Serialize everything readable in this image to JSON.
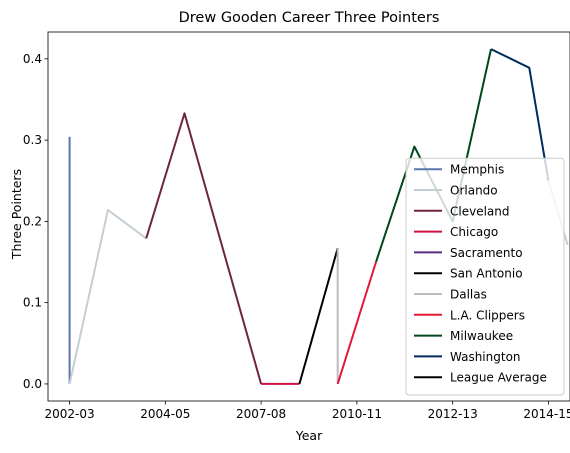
{
  "chart_data": {
    "type": "line",
    "title": "Drew Gooden Career Three Pointers",
    "xlabel": "Year",
    "ylabel": "Three Pointers",
    "x_tick_labels": [
      "2002-03",
      "2004-05",
      "2007-08",
      "2010-11",
      "2012-13",
      "2014-15"
    ],
    "x_tick_positions": [
      0,
      2,
      4,
      6,
      8,
      10
    ],
    "xlim": [
      -0.45,
      10.45
    ],
    "ylim": [
      -0.021,
      0.433
    ],
    "yticks": [
      0.0,
      0.1,
      0.2,
      0.3,
      0.4
    ],
    "ytick_labels": [
      "0.0",
      "0.1",
      "0.2",
      "0.3",
      "0.4"
    ],
    "legend_position": "lower right",
    "series": [
      {
        "name": "Memphis",
        "color": "#5D76A9",
        "points": [
          [
            0,
            0.304
          ],
          [
            0,
            0.0
          ]
        ]
      },
      {
        "name": "Orlando",
        "color": "#C4CED4",
        "points": [
          [
            0,
            0.0
          ],
          [
            0.8,
            0.214
          ],
          [
            1.6,
            0.179
          ]
        ]
      },
      {
        "name": "Cleveland",
        "color": "#6F263D",
        "points": [
          [
            1.6,
            0.179
          ],
          [
            2.4,
            0.333
          ],
          [
            4.0,
            0.0
          ]
        ]
      },
      {
        "name": "Chicago",
        "color": "#CE1141",
        "points": [
          [
            4.0,
            0.0
          ],
          [
            4.8,
            0.0
          ]
        ]
      },
      {
        "name": "Sacramento",
        "color": "#5A2D81",
        "points": [
          [
            4.8,
            0.0
          ]
        ]
      },
      {
        "name": "San Antonio",
        "color": "#000000",
        "points": [
          [
            4.8,
            0.0
          ],
          [
            5.6,
            0.167
          ]
        ]
      },
      {
        "name": "Dallas",
        "color": "#BBBBBB",
        "points": [
          [
            5.6,
            0.167
          ],
          [
            5.6,
            0.0
          ]
        ]
      },
      {
        "name": "L.A. Clippers",
        "color": "#E31837",
        "points": [
          [
            5.6,
            0.0
          ],
          [
            6.4,
            0.15
          ]
        ]
      },
      {
        "name": "Milwaukee",
        "color": "#00471B",
        "points": [
          [
            6.4,
            0.15
          ],
          [
            7.2,
            0.292
          ],
          [
            8.0,
            0.2
          ],
          [
            8.8,
            0.412
          ]
        ]
      },
      {
        "name": "Washington",
        "color": "#002B5C",
        "points": [
          [
            8.8,
            0.412
          ],
          [
            9.6,
            0.389
          ],
          [
            10.0,
            0.25
          ]
        ]
      },
      {
        "name": "League Average",
        "color": "#000000",
        "points": []
      }
    ],
    "extra_segments": [
      {
        "color": "#C4CED4",
        "points": [
          [
            10.0,
            0.25
          ],
          [
            10.4,
            0.171
          ]
        ]
      }
    ]
  }
}
